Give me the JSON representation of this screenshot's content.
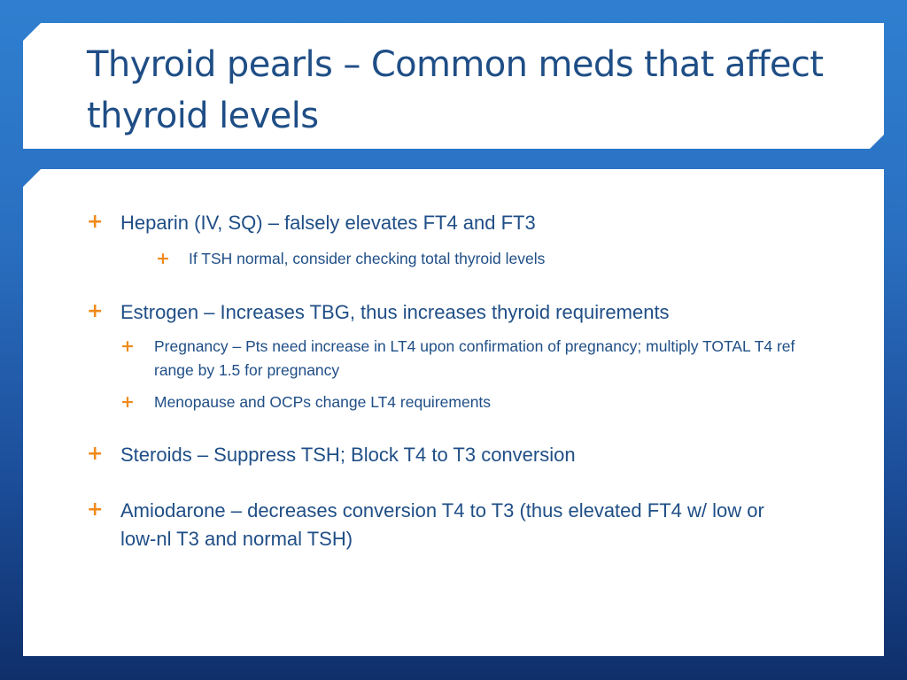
{
  "slide": {
    "title": "Thyroid pearls – Common meds that affect thyroid levels"
  },
  "bullets": [
    {
      "text": "Heparin (IV, SQ) – falsely elevates FT4 and FT3",
      "sub": [
        "If TSH normal, consider checking total thyroid levels"
      ]
    },
    {
      "text": "Estrogen – Increases TBG, thus increases thyroid requirements",
      "sub": [
        "Pregnancy – Pts need increase in LT4 upon confirmation of pregnancy; multiply TOTAL T4 ref range by 1.5 for pregnancy",
        "Menopause and OCPs change LT4 requirements"
      ]
    },
    {
      "text": "Steroids – Suppress TSH; Block T4 to T3 conversion",
      "sub": []
    },
    {
      "text": "Amiodarone – decreases conversion T4 to T3 (thus elevated FT4 w/ low or low-nl T3 and normal TSH)",
      "sub": []
    }
  ],
  "bullet_glyph": "+",
  "colors": {
    "title": "#1f4e86",
    "body_text": "#1f4e86",
    "bullet": "#f08a1c",
    "card": "#ffffff"
  }
}
